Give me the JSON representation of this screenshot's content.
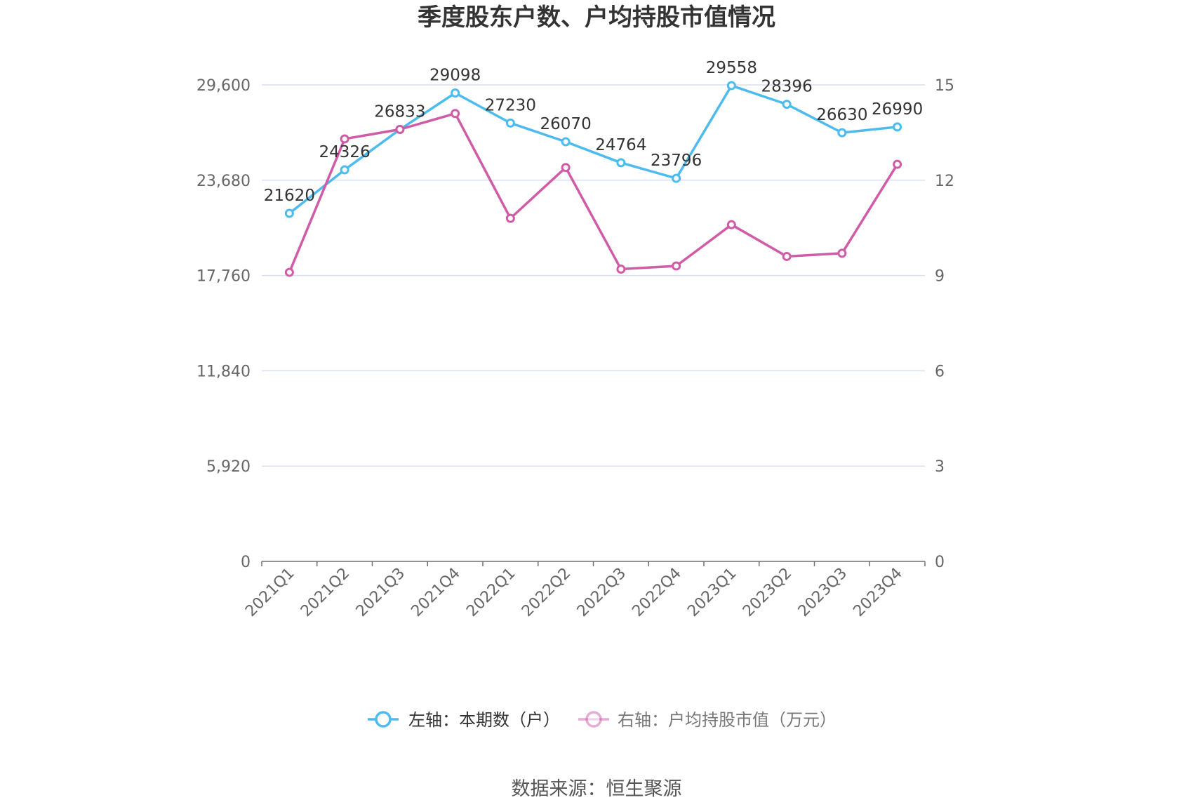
{
  "chart_data": {
    "type": "line",
    "title": "季度股东户数、户均持股市值情况",
    "categories": [
      "2021Q1",
      "2021Q2",
      "2021Q3",
      "2021Q4",
      "2022Q1",
      "2022Q2",
      "2022Q3",
      "2022Q4",
      "2023Q1",
      "2023Q2",
      "2023Q3",
      "2023Q4"
    ],
    "y_left": {
      "min": 0,
      "max": 29600,
      "ticks": [
        "0",
        "5,920",
        "11,840",
        "17,760",
        "23,680",
        "29,600"
      ],
      "tick_values": [
        0,
        5920,
        11840,
        17760,
        23680,
        29600
      ]
    },
    "y_right": {
      "min": 0,
      "max": 15,
      "ticks": [
        "0",
        "3",
        "6",
        "9",
        "12",
        "15"
      ],
      "tick_values": [
        0,
        3,
        6,
        9,
        12,
        15
      ]
    },
    "grid": true,
    "legend_position": "bottom",
    "series": [
      {
        "name": "左轴：本期数（户）",
        "axis": "left",
        "color": "#4dbbee",
        "values": [
          21620,
          24326,
          26833,
          29098,
          27230,
          26070,
          24764,
          23796,
          29558,
          28396,
          26630,
          26990
        ],
        "labels": [
          "21620",
          "24326",
          "26833",
          "29098",
          "27230",
          "26070",
          "24764",
          "23796",
          "29558",
          "28396",
          "26630",
          "26990"
        ]
      },
      {
        "name": "右轴：户均持股市值（万元）",
        "axis": "right",
        "color": "#d05ca8",
        "values": [
          9.1,
          13.3,
          13.6,
          14.1,
          10.8,
          12.4,
          9.2,
          9.3,
          10.6,
          9.6,
          9.7,
          12.5
        ]
      }
    ]
  },
  "source": "数据来源：恒生聚源"
}
